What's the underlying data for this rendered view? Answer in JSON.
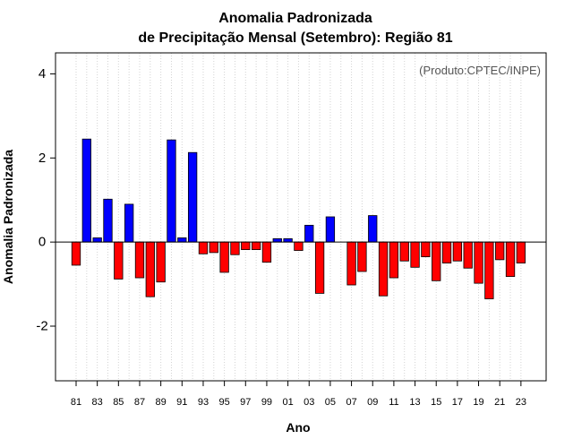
{
  "chart_data": {
    "type": "bar",
    "title": [
      "Anomalia Padronizada",
      "de Precipitação Mensal (Setembro): Região 81"
    ],
    "annotation": "(Produto:CPTEC/INPE)",
    "xlabel": "Ano",
    "ylabel": "Anomalia Padronizada",
    "ylim": [
      -3.3,
      4.5
    ],
    "yticks": [
      -2,
      0,
      2,
      4
    ],
    "ytick_labels": [
      "-2",
      "0",
      "2",
      "4"
    ],
    "categories": [
      "81",
      "82",
      "83",
      "84",
      "85",
      "86",
      "87",
      "88",
      "89",
      "90",
      "91",
      "92",
      "93",
      "94",
      "95",
      "96",
      "97",
      "98",
      "99",
      "00",
      "01",
      "02",
      "03",
      "04",
      "05",
      "06",
      "07",
      "08",
      "09",
      "10",
      "11",
      "12",
      "13",
      "14",
      "15",
      "16",
      "17",
      "18",
      "19",
      "20",
      "21",
      "22",
      "23"
    ],
    "xtick_labels": [
      "81",
      "83",
      "85",
      "87",
      "89",
      "91",
      "93",
      "95",
      "97",
      "99",
      "01",
      "03",
      "05",
      "07",
      "09",
      "11",
      "13",
      "15",
      "17",
      "19",
      "21",
      "23"
    ],
    "values": [
      -0.55,
      2.45,
      0.1,
      1.02,
      -0.88,
      0.9,
      -0.85,
      -1.3,
      -0.95,
      2.43,
      0.1,
      2.13,
      -0.28,
      -0.25,
      -0.72,
      -0.3,
      -0.18,
      -0.18,
      -0.48,
      0.08,
      0.08,
      -0.2,
      0.4,
      -1.22,
      0.6,
      0.0,
      -1.02,
      -0.7,
      0.63,
      -1.28,
      -0.85,
      -0.45,
      -0.6,
      -0.35,
      -0.92,
      -0.5,
      -0.45,
      -0.62,
      -0.98,
      -1.35,
      -0.42,
      -0.82,
      -0.5
    ],
    "colors": {
      "positive": "#0000ff",
      "negative": "#ff0000",
      "zero_line": "#000000",
      "grid": "#d3d3d3"
    },
    "grid": "vertical-dotted",
    "legend": "none"
  }
}
